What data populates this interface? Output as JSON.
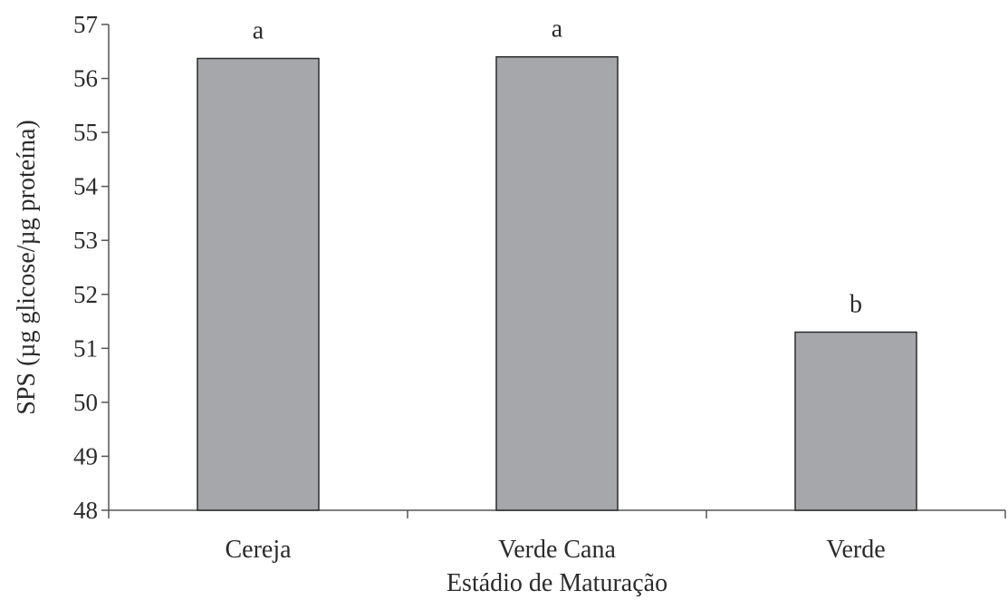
{
  "chart_data": {
    "type": "bar",
    "title": "",
    "xlabel": "Estádio de Maturação",
    "ylabel": "SPS (µg glicose/µg proteína)",
    "categories": [
      "Cereja",
      "Verde Cana",
      "Verde"
    ],
    "values": [
      56.37,
      56.4,
      51.3
    ],
    "significance_labels": [
      "a",
      "a",
      "b"
    ],
    "ylim": [
      48,
      57
    ],
    "yticks": [
      48,
      49,
      50,
      51,
      52,
      53,
      54,
      55,
      56,
      57
    ],
    "grid": false,
    "legend": "none",
    "colors": {
      "bar_fill": "#a6a7aa",
      "bar_stroke": "#2b2b2b",
      "axis": "#555555"
    }
  }
}
